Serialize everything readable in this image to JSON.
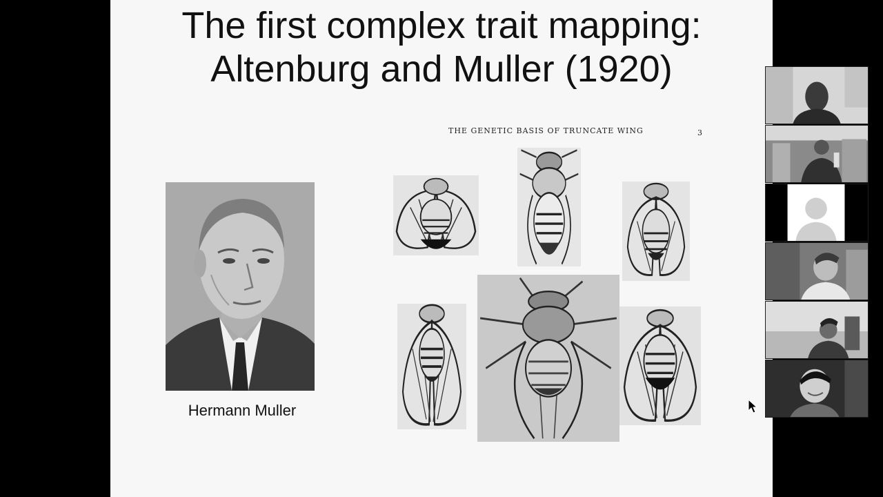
{
  "slide": {
    "title_line1": "The first complex trait mapping:",
    "title_line2": "Altenburg and Muller (1920)",
    "photo_caption": "Hermann Muller",
    "plate_header": "THE GENETIC BASIS OF TRUNCATE WING",
    "plate_page_number": "3"
  },
  "colors": {
    "screen_background": "#000000",
    "slide_background": "#f7f7f7",
    "title_text": "#111111"
  },
  "participants": [
    {
      "id": "participant-1",
      "camera": "on"
    },
    {
      "id": "participant-2",
      "camera": "on"
    },
    {
      "id": "participant-3",
      "camera": "off"
    },
    {
      "id": "participant-4",
      "camera": "on"
    },
    {
      "id": "participant-5",
      "camera": "on"
    },
    {
      "id": "participant-6",
      "camera": "on"
    }
  ],
  "icons": {
    "cursor": "mouse-pointer-icon",
    "placeholder_avatar": "person-silhouette-icon"
  }
}
